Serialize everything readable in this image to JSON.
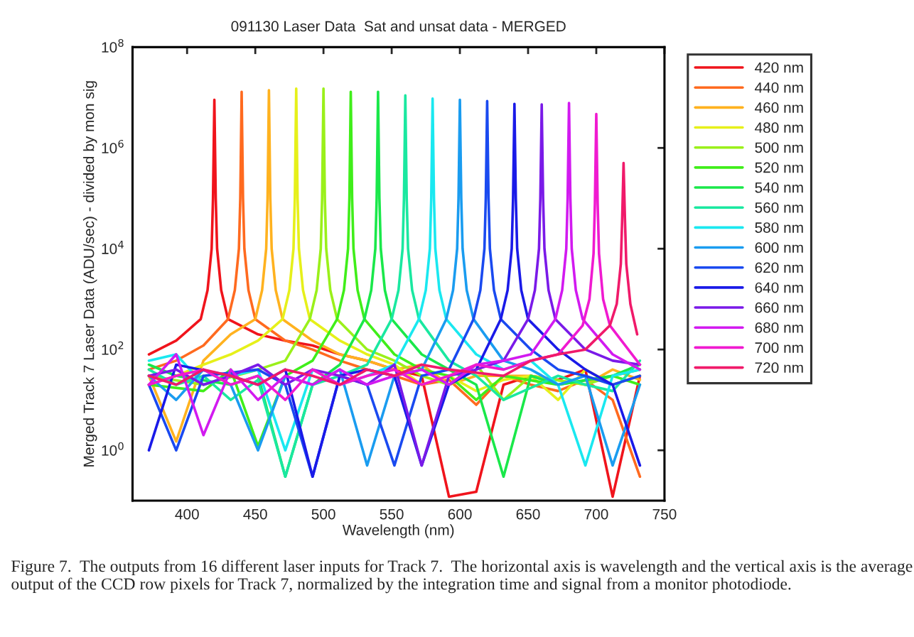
{
  "chart_data": {
    "type": "line",
    "title": "091130 Laser Data  Sat and unsat data - MERGED",
    "xlabel": "Wavelength (nm)",
    "ylabel": "Merged Track 7 Laser Data (ADU/sec) - divided by mon sig",
    "annotations": [
      "Figure 7.  The outputs from 16 different laser inputs for Track 7.  The horizontal axis is wavelength and the vertical axis is the average output of the CCD row pixels for Track 7, normalized by the integration time and signal from a monitor photodiode."
    ],
    "log": "y",
    "xlim": [
      360,
      750
    ],
    "xticks": [
      400,
      450,
      500,
      550,
      600,
      650,
      700,
      750
    ],
    "ylim": [
      0.1,
      100000000
    ],
    "yticks": [
      {
        "value": 1,
        "label": "10$^{0}$"
      },
      {
        "value": 100,
        "label": "10$^{2}$"
      },
      {
        "value": 10000,
        "label": "10$^{4}$"
      },
      {
        "value": 1000000,
        "label": "10$^{6}$"
      },
      {
        "value": 100000000,
        "label": "10$^{8}$"
      }
    ],
    "grid": false,
    "legend": "right",
    "line_style": "solid",
    "marker": "none",
    "series": [
      {
        "name": "420 nm",
        "color": "#f0141c",
        "x": [
          372,
          392,
          410,
          415,
          418,
          419,
          420,
          421,
          422,
          425,
          430,
          452,
          472,
          492,
          512,
          532,
          552,
          572,
          592,
          612,
          632,
          652,
          672,
          692,
          712,
          732
        ],
        "values": [
          80,
          150,
          400,
          1500,
          10000,
          100000,
          9000000,
          100000,
          10000,
          1500,
          400,
          200,
          150,
          120,
          80,
          60,
          40,
          30,
          0.12,
          0.15,
          20,
          30,
          25,
          40,
          0.12,
          30
        ]
      },
      {
        "name": "440 nm",
        "color": "#ff6a1f",
        "x": [
          372,
          392,
          412,
          430,
          435,
          438,
          439,
          440,
          441,
          442,
          445,
          450,
          472,
          492,
          512,
          532,
          552,
          572,
          592,
          612,
          632,
          652,
          672,
          692,
          712,
          732
        ],
        "values": [
          40,
          60,
          120,
          400,
          1500,
          10000,
          100000,
          13000000,
          100000,
          10000,
          1500,
          400,
          150,
          100,
          60,
          40,
          30,
          20,
          25,
          8,
          30,
          20,
          15,
          25,
          10,
          0.3
        ]
      },
      {
        "name": "460 nm",
        "color": "#ffb21f",
        "x": [
          372,
          392,
          412,
          432,
          450,
          455,
          458,
          459,
          460,
          461,
          462,
          465,
          470,
          492,
          512,
          532,
          552,
          572,
          592,
          612,
          632,
          652,
          672,
          692,
          712,
          732
        ],
        "values": [
          30,
          1.5,
          60,
          200,
          400,
          1500,
          10000,
          100000,
          14000000,
          100000,
          10000,
          1500,
          400,
          150,
          80,
          60,
          40,
          50,
          20,
          30,
          null,
          30,
          null,
          20,
          40,
          25
        ]
      },
      {
        "name": "480 nm",
        "color": "#e6f01a",
        "x": [
          372,
          392,
          412,
          432,
          452,
          470,
          475,
          478,
          479,
          480,
          481,
          482,
          485,
          490,
          512,
          532,
          552,
          572,
          592,
          612,
          632,
          652,
          672,
          692,
          712,
          732
        ],
        "values": [
          20,
          30,
          50,
          80,
          150,
          400,
          1500,
          10000,
          100000,
          15000000,
          100000,
          10000,
          1500,
          400,
          150,
          80,
          50,
          20,
          30,
          15,
          25,
          30,
          10,
          40,
          20,
          30
        ]
      },
      {
        "name": "500 nm",
        "color": "#9af01a",
        "x": [
          372,
          392,
          412,
          432,
          452,
          472,
          490,
          495,
          498,
          499,
          500,
          501,
          502,
          505,
          510,
          532,
          552,
          572,
          592,
          612,
          632,
          652,
          672,
          692,
          712,
          732
        ],
        "values": [
          30,
          null,
          20,
          null,
          40,
          60,
          400,
          1500,
          10000,
          100000,
          15000000,
          100000,
          10000,
          1500,
          400,
          100,
          60,
          30,
          20,
          50,
          10,
          30,
          null,
          20,
          30,
          40
        ]
      },
      {
        "name": "520 nm",
        "color": "#40ee1a",
        "x": [
          372,
          392,
          412,
          432,
          452,
          472,
          492,
          510,
          515,
          518,
          519,
          520,
          521,
          522,
          525,
          530,
          552,
          572,
          592,
          612,
          632,
          652,
          672,
          692,
          712,
          732
        ],
        "values": [
          20,
          null,
          15,
          40,
          1.2,
          30,
          60,
          400,
          1500,
          10000,
          100000,
          13000000,
          100000,
          10000,
          1500,
          400,
          80,
          40,
          30,
          10,
          30,
          null,
          20,
          null,
          30,
          20
        ]
      },
      {
        "name": "540 nm",
        "color": "#1ae84a",
        "x": [
          372,
          392,
          412,
          432,
          452,
          472,
          492,
          512,
          530,
          535,
          538,
          539,
          540,
          541,
          542,
          545,
          550,
          572,
          592,
          612,
          632,
          652,
          672,
          692,
          712,
          732
        ],
        "values": [
          50,
          30,
          null,
          20,
          30,
          0.3,
          20,
          50,
          400,
          1500,
          10000,
          100000,
          13000000,
          100000,
          10000,
          1500,
          400,
          80,
          40,
          20,
          0.3,
          30,
          20,
          null,
          30,
          50
        ]
      },
      {
        "name": "560 nm",
        "color": "#1ae8a0",
        "x": [
          372,
          392,
          412,
          432,
          452,
          472,
          492,
          512,
          532,
          550,
          555,
          558,
          559,
          560,
          561,
          562,
          565,
          570,
          592,
          612,
          632,
          652,
          672,
          692,
          712,
          732
        ],
        "values": [
          40,
          20,
          30,
          10,
          25,
          0.3,
          20,
          30,
          50,
          400,
          1500,
          10000,
          100000,
          11000000,
          100000,
          10000,
          1500,
          400,
          60,
          30,
          10,
          null,
          30,
          20,
          15,
          60
        ]
      },
      {
        "name": "580 nm",
        "color": "#1ae8f0",
        "x": [
          372,
          392,
          412,
          432,
          452,
          472,
          492,
          512,
          532,
          552,
          570,
          575,
          578,
          579,
          580,
          581,
          582,
          585,
          590,
          612,
          632,
          652,
          672,
          692,
          712,
          732
        ],
        "values": [
          60,
          80,
          20,
          30,
          40,
          1,
          40,
          20,
          30,
          50,
          400,
          1500,
          10000,
          100000,
          9500000,
          100000,
          10000,
          1500,
          400,
          80,
          40,
          60,
          20,
          0.5,
          30,
          40
        ]
      },
      {
        "name": "600 nm",
        "color": "#1a9cf0",
        "x": [
          372,
          392,
          412,
          432,
          452,
          472,
          492,
          512,
          532,
          552,
          572,
          590,
          595,
          598,
          599,
          600,
          601,
          602,
          605,
          610,
          632,
          652,
          672,
          692,
          712,
          732
        ],
        "values": [
          30,
          10,
          40,
          20,
          1,
          30,
          20,
          40,
          0.5,
          30,
          40,
          400,
          1500,
          10000,
          100000,
          9000000,
          100000,
          10000,
          1500,
          400,
          60,
          40,
          20,
          30,
          0.5,
          20
        ]
      },
      {
        "name": "620 nm",
        "color": "#1a4af0",
        "x": [
          372,
          392,
          412,
          432,
          452,
          472,
          492,
          512,
          532,
          552,
          572,
          592,
          610,
          615,
          618,
          619,
          620,
          621,
          622,
          625,
          630,
          652,
          672,
          692,
          712,
          732
        ],
        "values": [
          20,
          1,
          30,
          null,
          40,
          20,
          0.3,
          30,
          20,
          0.5,
          30,
          40,
          400,
          1500,
          10000,
          100000,
          8500000,
          100000,
          10000,
          1500,
          400,
          100,
          40,
          30,
          20,
          30
        ]
      },
      {
        "name": "640 nm",
        "color": "#1a1ae8",
        "x": [
          372,
          392,
          412,
          432,
          452,
          472,
          492,
          512,
          532,
          552,
          572,
          592,
          612,
          630,
          635,
          638,
          639,
          640,
          641,
          642,
          645,
          650,
          672,
          692,
          712,
          732
        ],
        "values": [
          1,
          50,
          null,
          30,
          20,
          40,
          0.3,
          30,
          40,
          30,
          0.5,
          20,
          40,
          400,
          1500,
          10000,
          100000,
          7500000,
          100000,
          10000,
          1500,
          400,
          100,
          40,
          20,
          0.5
        ]
      },
      {
        "name": "660 nm",
        "color": "#7a1ae8",
        "x": [
          372,
          392,
          412,
          432,
          452,
          472,
          492,
          512,
          532,
          552,
          572,
          592,
          612,
          632,
          650,
          655,
          658,
          659,
          660,
          661,
          662,
          665,
          670,
          692,
          712,
          732
        ],
        "values": [
          30,
          40,
          20,
          30,
          50,
          20,
          40,
          30,
          20,
          50,
          0.5,
          30,
          40,
          60,
          400,
          1500,
          10000,
          100000,
          7300000,
          100000,
          10000,
          1500,
          400,
          100,
          60,
          50
        ]
      },
      {
        "name": "680 nm",
        "color": "#d21af0",
        "x": [
          372,
          392,
          412,
          432,
          452,
          472,
          492,
          512,
          532,
          552,
          572,
          592,
          612,
          632,
          652,
          670,
          675,
          678,
          679,
          680,
          681,
          682,
          685,
          690,
          712,
          732
        ],
        "values": [
          20,
          80,
          2,
          40,
          10,
          30,
          20,
          40,
          20,
          30,
          40,
          20,
          50,
          60,
          80,
          400,
          1500,
          10000,
          100000,
          7800000,
          100000,
          10000,
          1500,
          400,
          80,
          40
        ]
      },
      {
        "name": "700 nm",
        "color": "#f01ad0",
        "x": [
          372,
          392,
          412,
          432,
          452,
          472,
          492,
          512,
          532,
          552,
          572,
          592,
          612,
          632,
          652,
          672,
          690,
          695,
          698,
          699,
          700,
          701,
          702,
          705,
          710,
          732
        ],
        "values": [
          20,
          30,
          40,
          20,
          30,
          10,
          40,
          20,
          30,
          40,
          20,
          30,
          50,
          40,
          60,
          80,
          300,
          1000,
          8000,
          80000,
          4700000,
          80000,
          8000,
          1000,
          300,
          50
        ]
      },
      {
        "name": "720 nm",
        "color": "#f01a6a",
        "x": [
          372,
          392,
          412,
          432,
          452,
          472,
          492,
          512,
          532,
          552,
          572,
          592,
          612,
          632,
          652,
          672,
          692,
          710,
          715,
          718,
          719,
          720,
          721,
          722,
          725,
          730
        ],
        "values": [
          30,
          20,
          40,
          30,
          20,
          40,
          30,
          20,
          40,
          30,
          50,
          40,
          null,
          30,
          60,
          80,
          100,
          300,
          800,
          5000,
          40000,
          500000,
          40000,
          5000,
          800,
          200
        ]
      }
    ]
  }
}
